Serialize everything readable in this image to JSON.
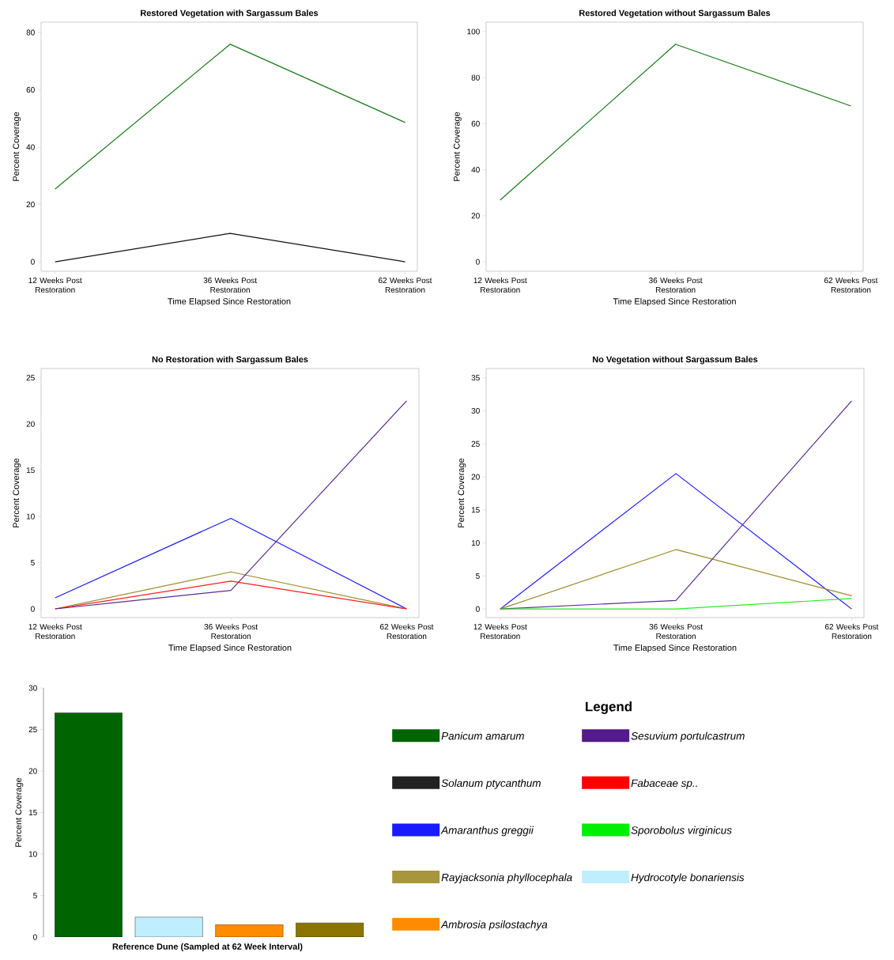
{
  "chart_data": [
    {
      "type": "line",
      "title": "Restored Vegetation with Sargassum Bales",
      "xlabel": "Time Elapsed Since Restoration",
      "ylabel": "Percent Coverage",
      "categories": [
        "12 Weeks Post Restoration",
        "36 Weeks Post Restoration",
        "62 Weeks Post Restoration"
      ],
      "ylim": [
        -3.3,
        83.6
      ],
      "yticks": [
        0,
        20,
        40,
        60,
        80
      ],
      "series": [
        {
          "color": "#1a7a1a",
          "values": [
            25.4,
            75.9,
            48.6
          ]
        },
        {
          "color": "#111111",
          "values": [
            0,
            9.9,
            0
          ]
        }
      ]
    },
    {
      "type": "line",
      "title": "Restored Vegetation without Sargassum Bales",
      "xlabel": "Time Elapsed Since Restoration",
      "ylabel": "Percent Coverage",
      "categories": [
        "12 Weeks Post Restoration",
        "36 Weeks Post Restoration",
        "62 Weeks Post Restoration"
      ],
      "ylim": [
        -4.1,
        104.1
      ],
      "yticks": [
        0,
        20,
        40,
        60,
        80,
        100
      ],
      "series": [
        {
          "color": "#1a7a1a",
          "values": [
            26.8,
            94.5,
            67.7
          ]
        }
      ]
    },
    {
      "type": "line",
      "title": "No Restoration with Sargassum Bales",
      "xlabel": "Time Elapsed Since Restoration",
      "ylabel": "Percent Coverage",
      "categories": [
        "12 Weeks Post Restoration",
        "36 Weeks Post Restoration",
        "62 Weeks Post Restoration"
      ],
      "ylim": [
        -0.94,
        26
      ],
      "yticks": [
        0,
        5,
        10,
        15,
        20,
        25
      ],
      "series": [
        {
          "color": "#1a1aff",
          "values": [
            1.2,
            9.8,
            0
          ]
        },
        {
          "color": "#9c8a2a",
          "values": [
            0,
            4,
            0
          ]
        },
        {
          "color": "#ff1a1a",
          "values": [
            0,
            3,
            0
          ]
        },
        {
          "color": "#5b2a8f",
          "values": [
            0,
            2,
            22.5
          ]
        }
      ]
    },
    {
      "type": "line",
      "title": "No Vegetation without Sargassum Bales",
      "xlabel": "Time Elapsed Since Restoration",
      "ylabel": "Percent Coverage",
      "categories": [
        "12 Weeks Post Restoration",
        "36 Weeks Post Restoration",
        "62 Weeks Post Restoration"
      ],
      "ylim": [
        -1.3,
        36.4
      ],
      "yticks": [
        0,
        5,
        10,
        15,
        20,
        25,
        30,
        35
      ],
      "series": [
        {
          "color": "#1a1aff",
          "values": [
            0,
            20.5,
            0
          ]
        },
        {
          "color": "#9c8a2a",
          "values": [
            0,
            9,
            2
          ]
        },
        {
          "color": "#5b2a8f",
          "values": [
            0,
            1.3,
            31.5
          ]
        },
        {
          "color": "#22ee22",
          "values": [
            0,
            0,
            1.6
          ]
        }
      ]
    },
    {
      "type": "bar",
      "xlabel": "Reference Dune (Sampled at 62 Week Interval)",
      "ylabel": "Percent Coverage",
      "categories": [
        null,
        null,
        null,
        null
      ],
      "ylim": [
        0,
        30
      ],
      "yticks": [
        0,
        5,
        10,
        15,
        20,
        25,
        30
      ],
      "values": [
        27,
        2.4,
        1.5,
        1.7
      ],
      "colors": [
        "#006400",
        "#bfefff",
        "#ff8c00",
        "#8b7500"
      ]
    },
    {
      "type": "other",
      "legend": "right",
      "legend_title": "Legend",
      "series": [
        {
          "name": "*Panicum amarum*",
          "color": "#006400"
        },
        {
          "name": "*Sesuvium portulcastrum*",
          "color": "#551a8b"
        },
        {
          "name": "*Solanum ptycanthum*",
          "color": "#222222"
        },
        {
          "name": "*Fabaceae sp..*",
          "color": "#ff0000"
        },
        {
          "name": "*Amaranthus greggii*",
          "color": "#1a1aff"
        },
        {
          "name": "*Sporobolus virginicus*",
          "color": "#00ee00"
        },
        {
          "name": "*Rayjacksonia phyllocephala*",
          "color": "#a8963c"
        },
        {
          "name": "*Hydrocotyle bonariensis*",
          "color": "#bfefff"
        },
        {
          "name": "*Ambrosia psilostachya*",
          "color": "#ff8c00"
        }
      ]
    }
  ]
}
